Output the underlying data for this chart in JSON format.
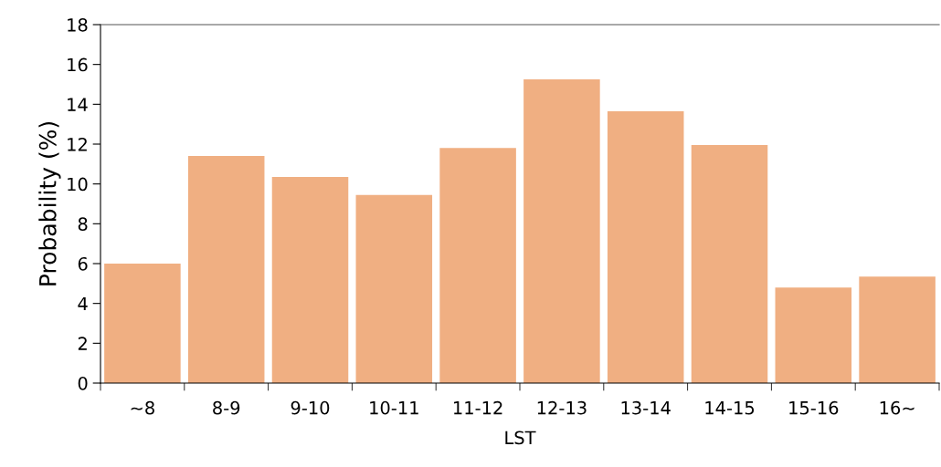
{
  "chart_data": {
    "type": "bar",
    "xlabel": "LST",
    "ylabel": "Probability (%)",
    "categories": [
      "~8",
      "8-9",
      "9-10",
      "10-11",
      "11-12",
      "12-13",
      "13-14",
      "14-15",
      "15-16",
      "16~"
    ],
    "values": [
      6.0,
      11.4,
      10.35,
      9.45,
      11.8,
      15.25,
      13.65,
      11.95,
      4.8,
      5.35
    ],
    "color": "#f0af82",
    "ylim": [
      0,
      18
    ],
    "yticks": [
      0,
      2,
      4,
      6,
      8,
      10,
      12,
      14,
      16,
      18
    ],
    "grid": false,
    "legend": false
  }
}
